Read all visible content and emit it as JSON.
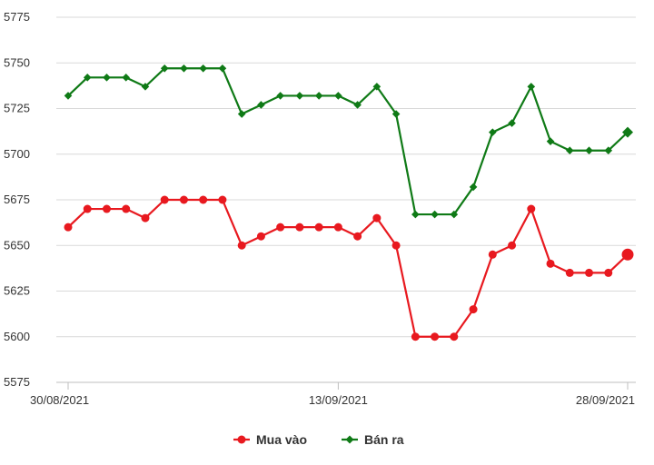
{
  "chart_data": {
    "type": "line",
    "title": "",
    "xlabel": "",
    "ylabel": "",
    "ylim": [
      5575,
      5775
    ],
    "yticks": [
      5575,
      5600,
      5625,
      5650,
      5675,
      5700,
      5725,
      5750,
      5775
    ],
    "xtick_labels": [
      "30/08/2021",
      "13/09/2021",
      "28/09/2021"
    ],
    "xtick_indices": [
      0,
      14,
      29
    ],
    "grid": "horizontal",
    "legend_position": "bottom",
    "series": [
      {
        "name": "Mua vào",
        "color": "#e8191f",
        "marker": "circle",
        "values": [
          5660,
          5670,
          5670,
          5670,
          5665,
          5675,
          5675,
          5675,
          5675,
          5650,
          5655,
          5660,
          5660,
          5660,
          5660,
          5655,
          5665,
          5650,
          5600,
          5600,
          5600,
          5615,
          5645,
          5650,
          5670,
          5640,
          5635,
          5635,
          5635,
          5645
        ]
      },
      {
        "name": "Bán ra",
        "color": "#0f7a16",
        "marker": "diamond",
        "values": [
          5732,
          5742,
          5742,
          5742,
          5737,
          5747,
          5747,
          5747,
          5747,
          5722,
          5727,
          5732,
          5732,
          5732,
          5732,
          5727,
          5737,
          5722,
          5667,
          5667,
          5667,
          5682,
          5712,
          5717,
          5737,
          5707,
          5702,
          5702,
          5702,
          5712
        ]
      }
    ]
  }
}
